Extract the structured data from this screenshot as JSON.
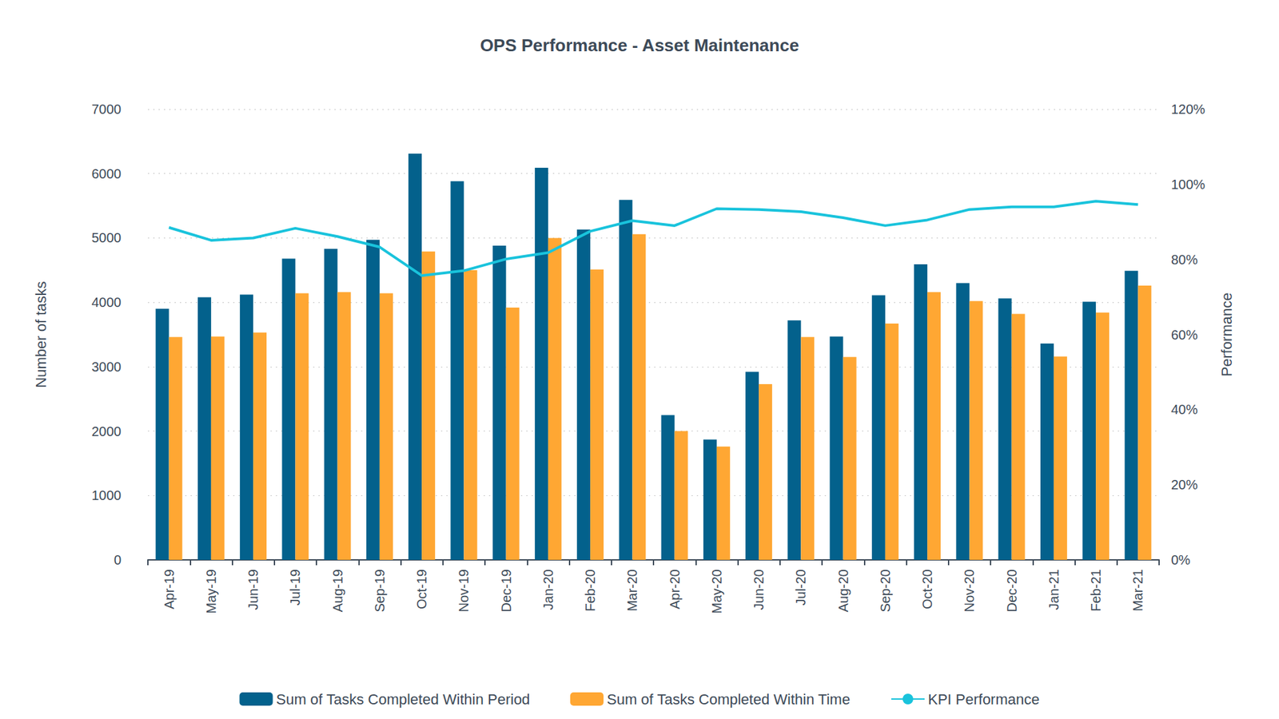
{
  "chart_data": {
    "type": "bar",
    "title": "OPS Performance - Asset Maintenance",
    "y_label": "Number of tasks",
    "y2_label": "Performance",
    "categories": [
      "Apr-19",
      "May-19",
      "Jun-19",
      "Jul-19",
      "Aug-19",
      "Sep-19",
      "Oct-19",
      "Nov-19",
      "Dec-19",
      "Jan-20",
      "Feb-20",
      "Mar-20",
      "Apr-20",
      "May-20",
      "Jun-20",
      "Jul-20",
      "Aug-20",
      "Sep-20",
      "Oct-20",
      "Nov-20",
      "Dec-20",
      "Jan-21",
      "Feb-21",
      "Mar-21"
    ],
    "series": [
      {
        "name": "Sum of Tasks Completed Within Period",
        "type": "bar",
        "color": "#03618c",
        "values": [
          3900,
          4080,
          4120,
          4680,
          4830,
          4970,
          6310,
          5880,
          4880,
          6090,
          5130,
          5590,
          2250,
          1870,
          2920,
          3720,
          3470,
          4110,
          4590,
          4300,
          4060,
          3360,
          4010,
          4490
        ]
      },
      {
        "name": "Sum of Tasks Completed Within Time",
        "type": "bar",
        "color": "#ffa733",
        "values": [
          3460,
          3470,
          3530,
          4140,
          4160,
          4140,
          4790,
          4500,
          3920,
          5000,
          4510,
          5060,
          2000,
          1760,
          2730,
          3460,
          3150,
          3670,
          4160,
          4020,
          3820,
          3160,
          3840,
          4260
        ]
      },
      {
        "name": "KPI Performance",
        "type": "line",
        "axis": "y2",
        "color": "#19c3dc",
        "values": [
          88.5,
          85.1,
          85.7,
          88.3,
          86.1,
          83.3,
          75.7,
          77.0,
          80.1,
          81.8,
          87.5,
          90.3,
          89.0,
          93.5,
          93.3,
          92.7,
          91.1,
          89.0,
          90.5,
          93.3,
          94.0,
          94.0,
          95.5,
          94.6
        ]
      }
    ],
    "ylim": [
      0,
      7000
    ],
    "yticks": [
      0,
      1000,
      2000,
      3000,
      4000,
      5000,
      6000,
      7000
    ],
    "y2lim": [
      0,
      120
    ],
    "y2ticks": [
      {
        "value": 0,
        "label": "0%"
      },
      {
        "value": 20,
        "label": "20%"
      },
      {
        "value": 40,
        "label": "40%"
      },
      {
        "value": 60,
        "label": "60%"
      },
      {
        "value": 80,
        "label": "80%"
      },
      {
        "value": 100,
        "label": "100%"
      },
      {
        "value": 120,
        "label": "120%"
      }
    ],
    "grid": true,
    "legend": "bottom"
  }
}
